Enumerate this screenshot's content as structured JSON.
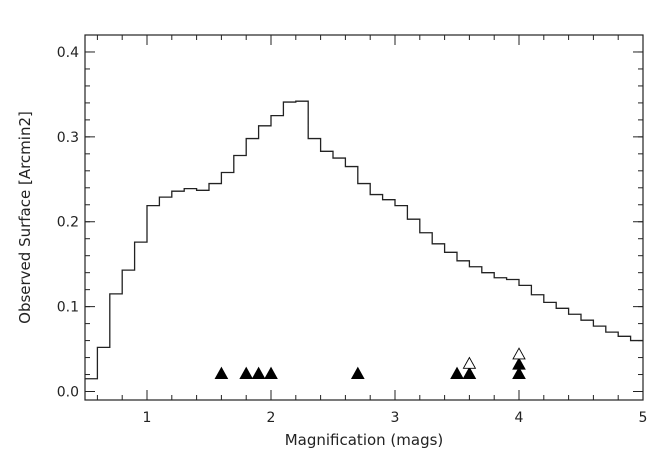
{
  "chart_data": {
    "type": "step",
    "xlabel": "Magnification (mags)",
    "ylabel": "Observed Surface [Arcmin2]",
    "xlim": [
      0.5,
      5.0
    ],
    "ylim": [
      -0.01,
      0.42
    ],
    "xticks": [
      1,
      2,
      3,
      4,
      5
    ],
    "xtick_labels": [
      "1",
      "2",
      "3",
      "4",
      "5"
    ],
    "yticks": [
      0.0,
      0.1,
      0.2,
      0.3,
      0.4
    ],
    "ytick_labels": [
      "0.0",
      "0.1",
      "0.2",
      "0.3",
      "0.4"
    ],
    "bin_width": 0.1,
    "histogram": {
      "bin_starts": [
        0.5,
        0.6,
        0.7,
        0.8,
        0.9,
        1.0,
        1.1,
        1.2,
        1.3,
        1.4,
        1.5,
        1.6,
        1.7,
        1.8,
        1.9,
        2.0,
        2.1,
        2.2,
        2.3,
        2.4,
        2.5,
        2.6,
        2.7,
        2.8,
        2.9,
        3.0,
        3.1,
        3.2,
        3.3,
        3.4,
        3.5,
        3.6,
        3.7,
        3.8,
        3.9,
        4.0,
        4.1,
        4.2,
        4.3,
        4.4,
        4.5,
        4.6,
        4.7,
        4.8,
        4.9
      ],
      "values": [
        0.015,
        0.052,
        0.115,
        0.143,
        0.176,
        0.219,
        0.229,
        0.236,
        0.239,
        0.237,
        0.245,
        0.258,
        0.278,
        0.298,
        0.313,
        0.325,
        0.341,
        0.342,
        0.298,
        0.283,
        0.275,
        0.265,
        0.245,
        0.232,
        0.226,
        0.219,
        0.203,
        0.187,
        0.174,
        0.164,
        0.154,
        0.147,
        0.14,
        0.134,
        0.132,
        0.125,
        0.114,
        0.105,
        0.098,
        0.091,
        0.084,
        0.077,
        0.07,
        0.065,
        0.06
      ]
    },
    "markers": {
      "filled": [
        {
          "x": 1.6,
          "y": 0.021
        },
        {
          "x": 1.8,
          "y": 0.021
        },
        {
          "x": 1.9,
          "y": 0.021
        },
        {
          "x": 2.0,
          "y": 0.021
        },
        {
          "x": 2.7,
          "y": 0.021
        },
        {
          "x": 3.5,
          "y": 0.021
        },
        {
          "x": 3.6,
          "y": 0.021
        },
        {
          "x": 4.0,
          "y": 0.021
        },
        {
          "x": 4.0,
          "y": 0.032
        }
      ],
      "open": [
        {
          "x": 3.6,
          "y": 0.033
        },
        {
          "x": 4.0,
          "y": 0.044
        }
      ]
    },
    "colors": {
      "line": "#222222",
      "marker": "#000000",
      "axes": "#222222"
    },
    "grid": false
  }
}
